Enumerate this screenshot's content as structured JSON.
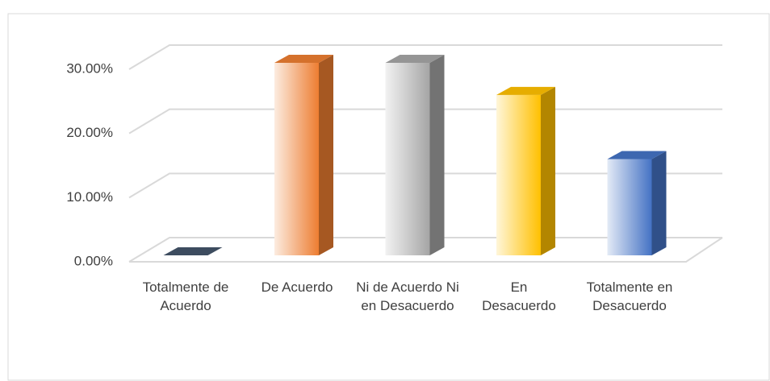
{
  "chart_data": {
    "type": "bar3d",
    "categories": [
      "Totalmente de Acuerdo",
      "De Acuerdo",
      "Ni de Acuerdo Ni en Desacuerdo",
      "En Desacuerdo",
      "Totalmente en Desacuerdo"
    ],
    "values": [
      0,
      30,
      30,
      25,
      15
    ],
    "colors": [
      "#44546a",
      "#ed7d31",
      "#a5a5a5",
      "#ffc000",
      "#4472c4"
    ],
    "ylim": [
      0,
      30
    ],
    "yticks": [
      {
        "value": 0,
        "label": "0.00%"
      },
      {
        "value": 10,
        "label": "10.00%"
      },
      {
        "value": 20,
        "label": "20.00%"
      },
      {
        "value": 30,
        "label": "30.00%"
      }
    ],
    "grid": true
  }
}
